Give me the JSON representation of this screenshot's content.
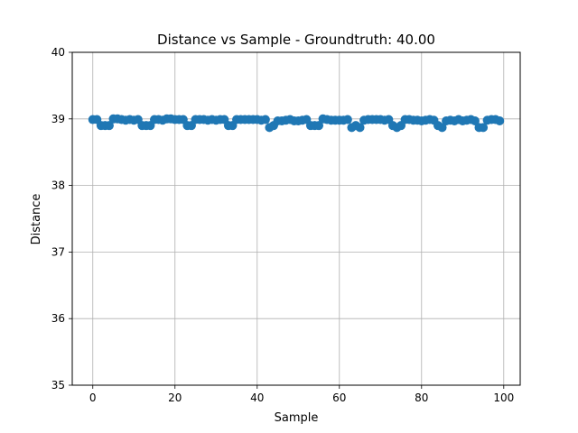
{
  "chart_data": {
    "type": "scatter",
    "title": "Distance vs Sample - Groundtruth: 40.00",
    "xlabel": "Sample",
    "ylabel": "Distance",
    "xlim": [
      -5,
      104
    ],
    "ylim": [
      35,
      40
    ],
    "xticks": [
      0,
      20,
      40,
      60,
      80,
      100
    ],
    "yticks": [
      35,
      36,
      37,
      38,
      39,
      40
    ],
    "grid": true,
    "marker_color": "#1f77b4",
    "series": [
      {
        "x": [
          0,
          1,
          2,
          3,
          4,
          5,
          6,
          7,
          8,
          9,
          10,
          11,
          12,
          13,
          14,
          15,
          16,
          17,
          18,
          19,
          20,
          21,
          22,
          23,
          24,
          25,
          26,
          27,
          28,
          29,
          30,
          31,
          32,
          33,
          34,
          35,
          36,
          37,
          38,
          39,
          40,
          41,
          42,
          43,
          44,
          45,
          46,
          47,
          48,
          49,
          50,
          51,
          52,
          53,
          54,
          55,
          56,
          57,
          58,
          59,
          60,
          61,
          62,
          63,
          64,
          65,
          66,
          67,
          68,
          69,
          70,
          71,
          72,
          73,
          74,
          75,
          76,
          77,
          78,
          79,
          80,
          81,
          82,
          83,
          84,
          85,
          86,
          87,
          88,
          89,
          90,
          91,
          92,
          93,
          94,
          95,
          96,
          97,
          98,
          99
        ],
        "y": [
          38.99,
          38.99,
          38.9,
          38.9,
          38.9,
          39.0,
          39.0,
          38.99,
          38.98,
          38.99,
          38.98,
          38.99,
          38.9,
          38.9,
          38.9,
          38.99,
          38.99,
          38.98,
          39.0,
          39.0,
          38.99,
          38.99,
          38.99,
          38.9,
          38.9,
          38.99,
          38.99,
          38.99,
          38.98,
          38.99,
          38.98,
          38.99,
          38.99,
          38.9,
          38.9,
          38.99,
          38.99,
          38.99,
          38.99,
          38.99,
          38.99,
          38.98,
          38.99,
          38.87,
          38.9,
          38.97,
          38.97,
          38.98,
          38.99,
          38.97,
          38.97,
          38.98,
          38.99,
          38.9,
          38.9,
          38.9,
          39.0,
          38.99,
          38.98,
          38.98,
          38.98,
          38.98,
          38.99,
          38.87,
          38.9,
          38.87,
          38.98,
          38.99,
          38.99,
          38.99,
          38.99,
          38.98,
          38.99,
          38.9,
          38.87,
          38.9,
          38.99,
          38.99,
          38.98,
          38.98,
          38.97,
          38.98,
          38.99,
          38.98,
          38.9,
          38.87,
          38.97,
          38.98,
          38.97,
          38.99,
          38.97,
          38.98,
          38.99,
          38.97,
          38.87,
          38.87,
          38.98,
          38.99,
          38.99,
          38.97
        ]
      }
    ]
  }
}
